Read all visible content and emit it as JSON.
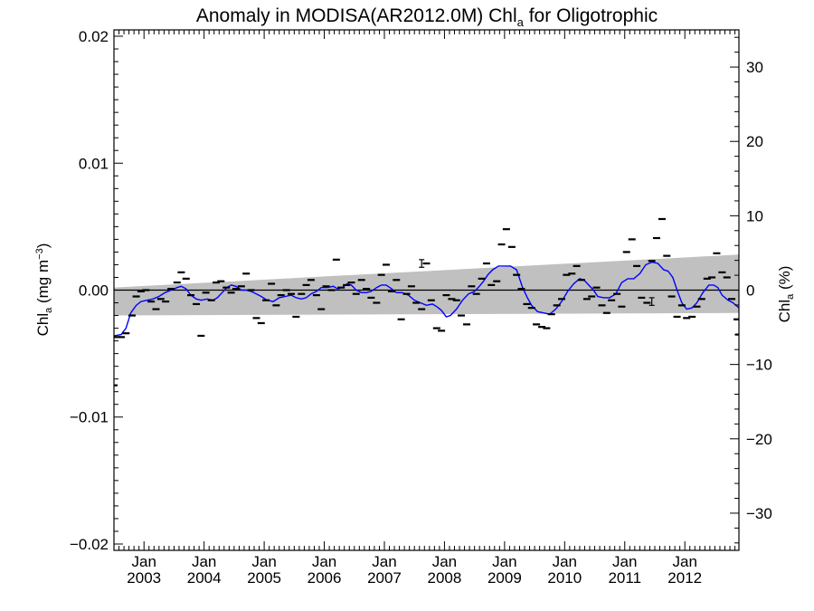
{
  "chart_data": {
    "type": "scatter",
    "title_main": "Anomaly in MODISA(AR2012.0M) Chl",
    "title_sub": "a",
    "title_tail": " for Oligotrophic",
    "ylabel_left_main": "Chl",
    "ylabel_left_sub": "a",
    "ylabel_left_tail": " (mg m",
    "ylabel_left_sup": "−3",
    "ylabel_left_close": ")",
    "ylabel_right_main": "Chl",
    "ylabel_right_sub": "a",
    "ylabel_right_tail": " (%)",
    "xlim": [
      2002.5,
      2012.9
    ],
    "ylim_left": [
      -0.0205,
      0.0205
    ],
    "ylim_right": [
      -35,
      35
    ],
    "left_ticks": [
      {
        "value": 0.02,
        "label": "0.02"
      },
      {
        "value": 0.01,
        "label": "0.01"
      },
      {
        "value": 0.0,
        "label": "0.00"
      },
      {
        "value": -0.01,
        "label": "−0.01"
      },
      {
        "value": -0.02,
        "label": "−0.02"
      }
    ],
    "right_ticks": [
      {
        "value": 30,
        "label": "30"
      },
      {
        "value": 20,
        "label": "20"
      },
      {
        "value": 10,
        "label": "10"
      },
      {
        "value": 0,
        "label": "0"
      },
      {
        "value": -10,
        "label": "−10"
      },
      {
        "value": -20,
        "label": "−20"
      },
      {
        "value": -30,
        "label": "−30"
      }
    ],
    "x_ticks": [
      {
        "value": 2003.0,
        "month": "Jan",
        "year": "2003"
      },
      {
        "value": 2004.0,
        "month": "Jan",
        "year": "2004"
      },
      {
        "value": 2005.0,
        "month": "Jan",
        "year": "2005"
      },
      {
        "value": 2006.0,
        "month": "Jan",
        "year": "2006"
      },
      {
        "value": 2007.0,
        "month": "Jan",
        "year": "2007"
      },
      {
        "value": 2008.0,
        "month": "Jan",
        "year": "2008"
      },
      {
        "value": 2009.0,
        "month": "Jan",
        "year": "2009"
      },
      {
        "value": 2010.0,
        "month": "Jan",
        "year": "2010"
      },
      {
        "value": 2011.0,
        "month": "Jan",
        "year": "2011"
      },
      {
        "value": 2012.0,
        "month": "Jan",
        "year": "2012"
      }
    ],
    "trend_band": {
      "upper": [
        [
          2002.5,
          0.0002
        ],
        [
          2012.9,
          0.0028
        ]
      ],
      "lower": [
        [
          2002.5,
          -0.002
        ],
        [
          2012.9,
          -0.0018
        ]
      ]
    },
    "zero_line": 0.0,
    "points": [
      [
        2002.5,
        -0.0075
      ],
      [
        2002.55,
        -0.0037
      ],
      [
        2002.62,
        -0.0037
      ],
      [
        2002.7,
        -0.0034
      ],
      [
        2002.8,
        -0.002
      ],
      [
        2002.87,
        -0.0005
      ],
      [
        2002.95,
        -0.0001
      ],
      [
        2003.03,
        0.0
      ],
      [
        2003.12,
        -0.0009
      ],
      [
        2003.2,
        -0.0015
      ],
      [
        2003.28,
        -0.0007
      ],
      [
        2003.36,
        -0.0009
      ],
      [
        2003.45,
        0.0001
      ],
      [
        2003.55,
        0.0006
      ],
      [
        2003.62,
        0.0014
      ],
      [
        2003.7,
        0.0009
      ],
      [
        2003.78,
        -0.0004
      ],
      [
        2003.87,
        -0.0011
      ],
      [
        2003.95,
        -0.0036
      ],
      [
        2004.03,
        -0.0002
      ],
      [
        2004.12,
        -0.0008
      ],
      [
        2004.2,
        0.0006
      ],
      [
        2004.28,
        0.0007
      ],
      [
        2004.37,
        0.0002
      ],
      [
        2004.45,
        -0.0002
      ],
      [
        2004.53,
        0.0001
      ],
      [
        2004.62,
        0.0003
      ],
      [
        2004.7,
        0.0013
      ],
      [
        2004.78,
        0.0
      ],
      [
        2004.87,
        -0.0022
      ],
      [
        2004.95,
        -0.0026
      ],
      [
        2005.03,
        -0.0008
      ],
      [
        2005.12,
        0.0005
      ],
      [
        2005.2,
        -0.0012
      ],
      [
        2005.28,
        -0.0004
      ],
      [
        2005.37,
        0.0
      ],
      [
        2005.45,
        -0.0003
      ],
      [
        2005.53,
        -0.0021
      ],
      [
        2005.62,
        -0.0003
      ],
      [
        2005.7,
        0.0004
      ],
      [
        2005.78,
        0.0008
      ],
      [
        2005.87,
        -0.0004
      ],
      [
        2005.95,
        -0.0015
      ],
      [
        2006.03,
        0.0003
      ],
      [
        2006.12,
        0.0
      ],
      [
        2006.2,
        0.0024
      ],
      [
        2006.28,
        0.0002
      ],
      [
        2006.37,
        0.0004
      ],
      [
        2006.45,
        0.0006
      ],
      [
        2006.53,
        -0.0003
      ],
      [
        2006.62,
        0.0008
      ],
      [
        2006.7,
        0.0001
      ],
      [
        2006.78,
        -0.0006
      ],
      [
        2006.87,
        -0.001
      ],
      [
        2006.95,
        0.0012
      ],
      [
        2007.03,
        0.002
      ],
      [
        2007.12,
        -0.0001
      ],
      [
        2007.2,
        0.0008
      ],
      [
        2007.28,
        -0.0023
      ],
      [
        2007.37,
        -0.0003
      ],
      [
        2007.45,
        0.0003
      ],
      [
        2007.53,
        -0.001
      ],
      [
        2007.62,
        -0.0015
      ],
      [
        2007.7,
        0.0021
      ],
      [
        2007.78,
        -0.0008
      ],
      [
        2007.87,
        -0.003
      ],
      [
        2007.95,
        -0.0032
      ],
      [
        2008.03,
        -0.0004
      ],
      [
        2008.12,
        -0.0007
      ],
      [
        2008.2,
        -0.0008
      ],
      [
        2008.28,
        -0.002
      ],
      [
        2008.37,
        -0.0027
      ],
      [
        2008.45,
        0.0003
      ],
      [
        2008.53,
        -0.0003
      ],
      [
        2008.62,
        0.0009
      ],
      [
        2008.7,
        0.0021
      ],
      [
        2008.78,
        0.0004
      ],
      [
        2008.87,
        0.0007
      ],
      [
        2008.95,
        0.0036
      ],
      [
        2009.03,
        0.0048
      ],
      [
        2009.12,
        0.0034
      ],
      [
        2009.2,
        0.0012
      ],
      [
        2009.28,
        0.0001
      ],
      [
        2009.37,
        -0.0011
      ],
      [
        2009.45,
        -0.0014
      ],
      [
        2009.53,
        -0.0027
      ],
      [
        2009.62,
        -0.0029
      ],
      [
        2009.7,
        -0.003
      ],
      [
        2009.78,
        -0.0019
      ],
      [
        2009.87,
        -0.0012
      ],
      [
        2009.95,
        -0.0007
      ],
      [
        2010.03,
        0.0012
      ],
      [
        2010.12,
        0.0013
      ],
      [
        2010.2,
        0.0019
      ],
      [
        2010.28,
        0.0008
      ],
      [
        2010.37,
        -0.0007
      ],
      [
        2010.45,
        -0.0005
      ],
      [
        2010.53,
        0.0002
      ],
      [
        2010.62,
        -0.0012
      ],
      [
        2010.7,
        -0.0018
      ],
      [
        2010.78,
        -0.0008
      ],
      [
        2010.87,
        -0.0003
      ],
      [
        2010.95,
        -0.0013
      ],
      [
        2011.03,
        0.003
      ],
      [
        2011.12,
        0.004
      ],
      [
        2011.2,
        0.0019
      ],
      [
        2011.28,
        -0.0006
      ],
      [
        2011.37,
        -0.001
      ],
      [
        2011.45,
        0.0023
      ],
      [
        2011.53,
        0.0041
      ],
      [
        2011.62,
        0.0056
      ],
      [
        2011.7,
        0.0027
      ],
      [
        2011.78,
        -0.0005
      ],
      [
        2011.87,
        -0.0021
      ],
      [
        2011.95,
        -0.0012
      ],
      [
        2012.03,
        -0.0022
      ],
      [
        2012.12,
        -0.0021
      ],
      [
        2012.2,
        -0.0013
      ],
      [
        2012.28,
        -0.0007
      ],
      [
        2012.37,
        0.0009
      ],
      [
        2012.45,
        0.001
      ],
      [
        2012.53,
        0.0029
      ],
      [
        2012.62,
        0.0014
      ],
      [
        2012.7,
        0.001
      ],
      [
        2012.78,
        -0.0007
      ],
      [
        2012.87,
        -0.0023
      ],
      [
        2012.9,
        -0.0035
      ]
    ],
    "errorbars": [
      {
        "x": 2007.62,
        "y": 0.0021,
        "err": 0.0003
      },
      {
        "x": 2011.45,
        "y": -0.0009,
        "err": 0.0003
      }
    ],
    "smooth_line": [
      [
        2002.5,
        -0.0036
      ],
      [
        2002.62,
        -0.0035
      ],
      [
        2002.7,
        -0.003
      ],
      [
        2002.78,
        -0.0018
      ],
      [
        2002.87,
        -0.0012
      ],
      [
        2002.95,
        -0.0009
      ],
      [
        2003.05,
        -0.0008
      ],
      [
        2003.15,
        -0.0007
      ],
      [
        2003.25,
        -0.0005
      ],
      [
        2003.35,
        -0.0002
      ],
      [
        2003.45,
        0.0
      ],
      [
        2003.55,
        0.0002
      ],
      [
        2003.62,
        0.0003
      ],
      [
        2003.7,
        0.0001
      ],
      [
        2003.78,
        -0.0004
      ],
      [
        2003.87,
        -0.0007
      ],
      [
        2003.95,
        -0.0008
      ],
      [
        2004.05,
        -0.0007
      ],
      [
        2004.15,
        -0.0008
      ],
      [
        2004.22,
        -0.0006
      ],
      [
        2004.3,
        -0.0002
      ],
      [
        2004.38,
        0.0002
      ],
      [
        2004.45,
        0.0004
      ],
      [
        2004.53,
        0.0003
      ],
      [
        2004.62,
        0.0
      ],
      [
        2004.7,
        0.0
      ],
      [
        2004.78,
        -0.0001
      ],
      [
        2004.87,
        -0.0003
      ],
      [
        2004.95,
        -0.0005
      ],
      [
        2005.05,
        -0.0008
      ],
      [
        2005.15,
        -0.0009
      ],
      [
        2005.25,
        -0.0006
      ],
      [
        2005.35,
        -0.0005
      ],
      [
        2005.45,
        -0.0004
      ],
      [
        2005.53,
        -0.0006
      ],
      [
        2005.62,
        -0.0007
      ],
      [
        2005.7,
        -0.0006
      ],
      [
        2005.78,
        -0.0003
      ],
      [
        2005.87,
        -0.0001
      ],
      [
        2005.95,
        0.0002
      ],
      [
        2006.05,
        0.0002
      ],
      [
        2006.15,
        0.0003
      ],
      [
        2006.22,
        0.0001
      ],
      [
        2006.3,
        0.0002
      ],
      [
        2006.38,
        0.0005
      ],
      [
        2006.45,
        0.0004
      ],
      [
        2006.53,
        0.0
      ],
      [
        2006.62,
        -0.0002
      ],
      [
        2006.7,
        -0.0002
      ],
      [
        2006.78,
        -0.0001
      ],
      [
        2006.87,
        0.0002
      ],
      [
        2006.95,
        0.0004
      ],
      [
        2007.03,
        0.0004
      ],
      [
        2007.12,
        0.0001
      ],
      [
        2007.2,
        -0.0002
      ],
      [
        2007.3,
        -0.0002
      ],
      [
        2007.4,
        -0.0004
      ],
      [
        2007.5,
        -0.0008
      ],
      [
        2007.6,
        -0.001
      ],
      [
        2007.7,
        -0.0012
      ],
      [
        2007.8,
        -0.0011
      ],
      [
        2007.87,
        -0.0013
      ],
      [
        2007.95,
        -0.0016
      ],
      [
        2008.03,
        -0.0021
      ],
      [
        2008.1,
        -0.002
      ],
      [
        2008.2,
        -0.0015
      ],
      [
        2008.3,
        -0.0008
      ],
      [
        2008.4,
        -0.0003
      ],
      [
        2008.5,
        -0.0001
      ],
      [
        2008.58,
        0.0003
      ],
      [
        2008.65,
        0.0007
      ],
      [
        2008.72,
        0.0012
      ],
      [
        2008.8,
        0.0016
      ],
      [
        2008.9,
        0.0019
      ],
      [
        2009.0,
        0.0019
      ],
      [
        2009.1,
        0.0019
      ],
      [
        2009.2,
        0.0016
      ],
      [
        2009.3,
        0.0002
      ],
      [
        2009.38,
        -0.0006
      ],
      [
        2009.45,
        -0.0012
      ],
      [
        2009.55,
        -0.0017
      ],
      [
        2009.65,
        -0.0018
      ],
      [
        2009.75,
        -0.0019
      ],
      [
        2009.85,
        -0.0015
      ],
      [
        2009.95,
        -0.0009
      ],
      [
        2010.05,
        -0.0001
      ],
      [
        2010.15,
        0.0005
      ],
      [
        2010.25,
        0.0009
      ],
      [
        2010.32,
        0.0008
      ],
      [
        2010.4,
        0.0004
      ],
      [
        2010.48,
        0.0
      ],
      [
        2010.55,
        -0.0005
      ],
      [
        2010.65,
        -0.0006
      ],
      [
        2010.75,
        -0.0006
      ],
      [
        2010.85,
        -0.0003
      ],
      [
        2010.95,
        0.0006
      ],
      [
        2011.05,
        0.0009
      ],
      [
        2011.15,
        0.0009
      ],
      [
        2011.25,
        0.0013
      ],
      [
        2011.35,
        0.002
      ],
      [
        2011.45,
        0.0022
      ],
      [
        2011.55,
        0.0021
      ],
      [
        2011.65,
        0.0016
      ],
      [
        2011.72,
        0.0015
      ],
      [
        2011.8,
        0.001
      ],
      [
        2011.87,
        0.0
      ],
      [
        2011.95,
        -0.001
      ],
      [
        2012.03,
        -0.0015
      ],
      [
        2012.12,
        -0.0014
      ],
      [
        2012.2,
        -0.001
      ],
      [
        2012.3,
        -0.0002
      ],
      [
        2012.4,
        0.0004
      ],
      [
        2012.48,
        0.0004
      ],
      [
        2012.55,
        0.0002
      ],
      [
        2012.62,
        -0.0004
      ],
      [
        2012.72,
        -0.0008
      ],
      [
        2012.8,
        -0.001
      ],
      [
        2012.9,
        -0.0014
      ]
    ],
    "colors": {
      "band": "#c0c0c0",
      "line": "#0000ff",
      "points": "#000000",
      "axes": "#000000"
    },
    "grid": false
  }
}
